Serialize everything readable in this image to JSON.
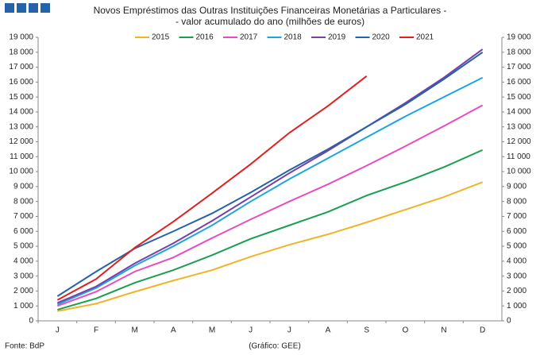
{
  "chart_data": {
    "type": "line",
    "title": "Novos Empréstimos das Outras Instituições Financeiras Monetárias a Particulares -",
    "subtitle": "- valor acumulado do ano (milhões de euros)",
    "source": "Fonte: BdP",
    "credit": "(Gráfico: GEE)",
    "categories": [
      "J",
      "F",
      "M",
      "A",
      "M",
      "J",
      "J",
      "A",
      "S",
      "O",
      "N",
      "D"
    ],
    "series": [
      {
        "name": "2015",
        "color": "#f0b429",
        "values": [
          650,
          1150,
          1950,
          2700,
          3400,
          4300,
          5100,
          5800,
          6600,
          7450,
          8300,
          9300
        ]
      },
      {
        "name": "2016",
        "color": "#1a9e50",
        "values": [
          750,
          1500,
          2550,
          3400,
          4400,
          5500,
          6400,
          7300,
          8400,
          9300,
          10300,
          11450
        ]
      },
      {
        "name": "2017",
        "color": "#e94bc4",
        "values": [
          1000,
          1950,
          3300,
          4250,
          5550,
          6800,
          8000,
          9150,
          10400,
          11700,
          13050,
          14450
        ]
      },
      {
        "name": "2018",
        "color": "#1ba6e0",
        "values": [
          1100,
          2200,
          3700,
          5000,
          6400,
          8000,
          9500,
          10900,
          12300,
          13700,
          15000,
          16300
        ]
      },
      {
        "name": "2019",
        "color": "#7a3fa3",
        "values": [
          1200,
          2300,
          3850,
          5200,
          6700,
          8300,
          9900,
          11400,
          13000,
          14600,
          16300,
          18200
        ]
      },
      {
        "name": "2020",
        "color": "#2563a8",
        "values": [
          1650,
          3300,
          4850,
          6000,
          7200,
          8600,
          10100,
          11500,
          13000,
          14500,
          16200,
          18000
        ]
      },
      {
        "name": "2021",
        "color": "#e02020",
        "values": [
          1400,
          2800,
          4900,
          6650,
          8550,
          10500,
          12600,
          14400,
          16400,
          null,
          null,
          null
        ]
      }
    ],
    "ylim": [
      0,
      19000
    ],
    "yticks": [
      0,
      {
        "value": 1000,
        "label": "1 000"
      },
      {
        "value": 2000,
        "label": "2 000"
      },
      {
        "value": 3000,
        "label": "3 000"
      },
      {
        "value": 4000,
        "label": "4 000"
      },
      {
        "value": 5000,
        "label": "5 000"
      },
      {
        "value": 6000,
        "label": "6 000"
      },
      {
        "value": 7000,
        "label": "7 000"
      },
      {
        "value": 8000,
        "label": "8 000"
      },
      {
        "value": 9000,
        "label": "9 000"
      },
      {
        "value": 10000,
        "label": "10 000"
      },
      {
        "value": 11000,
        "label": "11 000"
      },
      {
        "value": 12000,
        "label": "12 000"
      },
      {
        "value": 13000,
        "label": "13 000"
      },
      {
        "value": 14000,
        "label": "14 000"
      },
      {
        "value": 15000,
        "label": "15 000"
      },
      {
        "value": 16000,
        "label": "16 000"
      },
      {
        "value": 17000,
        "label": "17 000"
      },
      {
        "value": 18000,
        "label": "18 000"
      },
      {
        "value": 19000,
        "label": "19 000"
      }
    ],
    "y2lim": [
      0,
      19000
    ],
    "y2ticks": [
      0,
      {
        "value": 1000,
        "label": "1 000"
      },
      {
        "value": 2000,
        "label": "2 000"
      },
      {
        "value": 3000,
        "label": "3 000"
      },
      {
        "value": 4000,
        "label": "4 000"
      },
      {
        "value": 5000,
        "label": "5 000"
      },
      {
        "value": 6000,
        "label": "6 000"
      },
      {
        "value": 7000,
        "label": "7 000"
      },
      {
        "value": 8000,
        "label": "8 000"
      },
      {
        "value": 9000,
        "label": "9 000"
      },
      {
        "value": 10000,
        "label": "10 000"
      },
      {
        "value": 11000,
        "label": "11 000"
      },
      {
        "value": 12000,
        "label": "12 000"
      },
      {
        "value": 13000,
        "label": "13 000"
      },
      {
        "value": 14000,
        "label": "14 000"
      },
      {
        "value": 15000,
        "label": "15 000"
      },
      {
        "value": 16000,
        "label": "16 000"
      },
      {
        "value": 17000,
        "label": "17 000"
      },
      {
        "value": 18000,
        "label": "18 000"
      },
      {
        "value": 19000,
        "label": "19 000"
      }
    ],
    "legend": "top",
    "grid": false
  }
}
